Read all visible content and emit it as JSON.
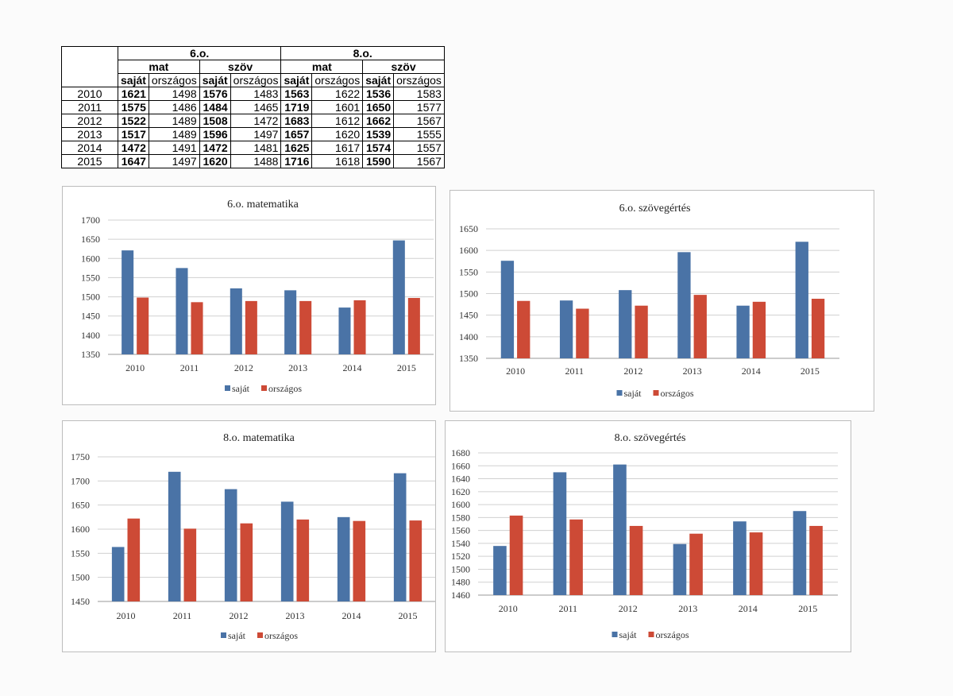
{
  "table": {
    "groups": [
      "6.o.",
      "8.o."
    ],
    "subjects": [
      "mat",
      "szöv",
      "mat",
      "szöv"
    ],
    "columns": [
      "saját",
      "országos",
      "saját",
      "országos",
      "saját",
      "országos",
      "saját",
      "országos"
    ],
    "rows": [
      {
        "year": "2010",
        "values": [
          "1621",
          "1498",
          "1576",
          "1483",
          "1563",
          "1622",
          "1536",
          "1583"
        ]
      },
      {
        "year": "2011",
        "values": [
          "1575",
          "1486",
          "1484",
          "1465",
          "1719",
          "1601",
          "1650",
          "1577"
        ]
      },
      {
        "year": "2012",
        "values": [
          "1522",
          "1489",
          "1508",
          "1472",
          "1683",
          "1612",
          "1662",
          "1567"
        ]
      },
      {
        "year": "2013",
        "values": [
          "1517",
          "1489",
          "1596",
          "1497",
          "1657",
          "1620",
          "1539",
          "1555"
        ]
      },
      {
        "year": "2014",
        "values": [
          "1472",
          "1491",
          "1472",
          "1481",
          "1625",
          "1617",
          "1574",
          "1557"
        ]
      },
      {
        "year": "2015",
        "values": [
          "1647",
          "1497",
          "1620",
          "1488",
          "1716",
          "1618",
          "1590",
          "1567"
        ]
      }
    ]
  },
  "colors": {
    "sajat": "#4a73a6",
    "orszagos": "#cd4a36",
    "grid": "#d0d0d0",
    "text": "#333333"
  },
  "chart_data": [
    {
      "type": "bar",
      "title": "6.o. matematika",
      "categories": [
        "2010",
        "2011",
        "2012",
        "2013",
        "2014",
        "2015"
      ],
      "series": [
        {
          "name": "saját",
          "values": [
            1621,
            1575,
            1522,
            1517,
            1472,
            1647
          ]
        },
        {
          "name": "országos",
          "values": [
            1498,
            1486,
            1489,
            1489,
            1491,
            1497
          ]
        }
      ],
      "ylim": [
        1350,
        1700
      ],
      "yticks": [
        1350,
        1400,
        1450,
        1500,
        1550,
        1600,
        1650,
        1700
      ],
      "grid": true,
      "legend": "bottom"
    },
    {
      "type": "bar",
      "title": "6.o. szövegértés",
      "categories": [
        "2010",
        "2011",
        "2012",
        "2013",
        "2014",
        "2015"
      ],
      "series": [
        {
          "name": "saját",
          "values": [
            1576,
            1484,
            1508,
            1596,
            1472,
            1620
          ]
        },
        {
          "name": "országos",
          "values": [
            1483,
            1465,
            1472,
            1497,
            1481,
            1488
          ]
        }
      ],
      "ylim": [
        1350,
        1650
      ],
      "yticks": [
        1350,
        1400,
        1450,
        1500,
        1550,
        1600,
        1650
      ],
      "grid": true,
      "legend": "bottom"
    },
    {
      "type": "bar",
      "title": "8.o. matematika",
      "categories": [
        "2010",
        "2011",
        "2012",
        "2013",
        "2014",
        "2015"
      ],
      "series": [
        {
          "name": "saját",
          "values": [
            1563,
            1719,
            1683,
            1657,
            1625,
            1716
          ]
        },
        {
          "name": "országos",
          "values": [
            1622,
            1601,
            1612,
            1620,
            1617,
            1618
          ]
        }
      ],
      "ylim": [
        1450,
        1750
      ],
      "yticks": [
        1450,
        1500,
        1550,
        1600,
        1650,
        1700,
        1750
      ],
      "grid": true,
      "legend": "bottom"
    },
    {
      "type": "bar",
      "title": "8.o. szövegértés",
      "categories": [
        "2010",
        "2011",
        "2012",
        "2013",
        "2014",
        "2015"
      ],
      "series": [
        {
          "name": "saját",
          "values": [
            1536,
            1650,
            1662,
            1539,
            1574,
            1590
          ]
        },
        {
          "name": "országos",
          "values": [
            1583,
            1577,
            1567,
            1555,
            1557,
            1567
          ]
        }
      ],
      "ylim": [
        1460,
        1680
      ],
      "yticks": [
        1460,
        1480,
        1500,
        1520,
        1540,
        1560,
        1580,
        1600,
        1620,
        1640,
        1660,
        1680
      ],
      "grid": true,
      "legend": "bottom"
    }
  ]
}
